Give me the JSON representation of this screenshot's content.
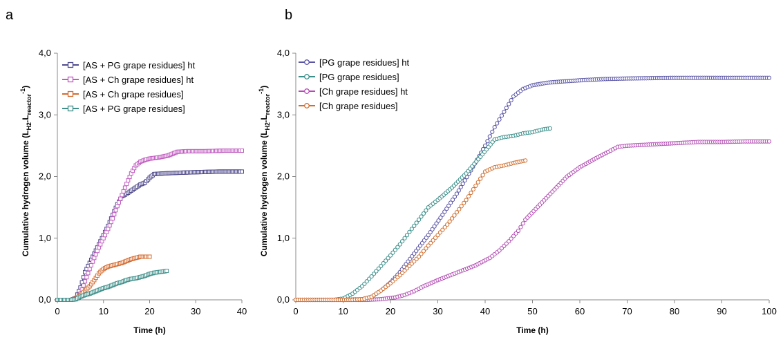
{
  "panels": [
    {
      "id": "a",
      "label": "a"
    },
    {
      "id": "b",
      "label": "b"
    }
  ],
  "chart_data": [
    {
      "type": "line",
      "panel": "a",
      "xlabel": "Time (h)",
      "ylabel_main": "Cumulative hydrogen volume (L",
      "ylabel_sub1": "H2",
      "ylabel_mid": ".L",
      "ylabel_sub2": "reactor",
      "ylabel_sup": "-1",
      "ylabel_end": ")",
      "xlim": [
        0,
        40
      ],
      "ylim": [
        0,
        4
      ],
      "xticks": [
        "0",
        "10",
        "20",
        "30",
        "40"
      ],
      "yticks": [
        "0,0",
        "1,0",
        "2,0",
        "3,0",
        "4,0"
      ],
      "xtick_values": [
        0,
        10,
        20,
        30,
        40
      ],
      "ytick_values": [
        0,
        1,
        2,
        3,
        4
      ],
      "marker": "square",
      "legend_position": "top-left",
      "series": [
        {
          "name": "[AS + PG grape residues] ht",
          "color": "#4f4a8c",
          "points": [
            [
              0,
              0
            ],
            [
              3,
              0
            ],
            [
              4,
              0.03
            ],
            [
              5,
              0.2
            ],
            [
              6,
              0.45
            ],
            [
              7,
              0.6
            ],
            [
              8,
              0.75
            ],
            [
              9,
              0.9
            ],
            [
              10,
              1.05
            ],
            [
              11,
              1.2
            ],
            [
              12,
              1.38
            ],
            [
              13,
              1.55
            ],
            [
              14,
              1.68
            ],
            [
              15,
              1.72
            ],
            [
              16,
              1.77
            ],
            [
              17,
              1.82
            ],
            [
              18,
              1.87
            ],
            [
              19,
              1.9
            ],
            [
              20,
              1.98
            ],
            [
              21,
              2.04
            ],
            [
              23,
              2.05
            ],
            [
              26,
              2.06
            ],
            [
              30,
              2.07
            ],
            [
              35,
              2.08
            ],
            [
              40,
              2.08
            ]
          ]
        },
        {
          "name": "[AS + Ch grape residues] ht",
          "color": "#c05cc0",
          "points": [
            [
              0,
              0
            ],
            [
              3,
              0
            ],
            [
              4,
              0.01
            ],
            [
              5,
              0.1
            ],
            [
              6,
              0.3
            ],
            [
              7,
              0.5
            ],
            [
              8,
              0.68
            ],
            [
              9,
              0.85
            ],
            [
              10,
              1.0
            ],
            [
              11,
              1.15
            ],
            [
              12,
              1.32
            ],
            [
              13,
              1.52
            ],
            [
              14,
              1.7
            ],
            [
              15,
              1.88
            ],
            [
              16,
              2.05
            ],
            [
              17,
              2.18
            ],
            [
              18,
              2.24
            ],
            [
              19,
              2.27
            ],
            [
              20,
              2.29
            ],
            [
              22,
              2.31
            ],
            [
              24,
              2.34
            ],
            [
              25,
              2.37
            ],
            [
              26,
              2.4
            ],
            [
              28,
              2.41
            ],
            [
              32,
              2.41
            ],
            [
              36,
              2.42
            ],
            [
              40,
              2.42
            ]
          ]
        },
        {
          "name": "[AS + Ch grape residues]",
          "color": "#d46a2e",
          "points": [
            [
              0,
              0
            ],
            [
              3,
              0
            ],
            [
              4,
              0.02
            ],
            [
              5,
              0.08
            ],
            [
              6,
              0.15
            ],
            [
              7,
              0.22
            ],
            [
              8,
              0.32
            ],
            [
              9,
              0.43
            ],
            [
              10,
              0.5
            ],
            [
              11,
              0.54
            ],
            [
              12,
              0.56
            ],
            [
              13,
              0.58
            ],
            [
              14,
              0.6
            ],
            [
              15,
              0.63
            ],
            [
              16,
              0.66
            ],
            [
              17,
              0.68
            ],
            [
              18,
              0.7
            ],
            [
              19,
              0.7
            ],
            [
              20,
              0.7
            ]
          ]
        },
        {
          "name": "[AS + PG grape residues]",
          "color": "#3f8f8a",
          "points": [
            [
              0,
              0
            ],
            [
              3,
              0
            ],
            [
              4,
              0.01
            ],
            [
              5,
              0.05
            ],
            [
              6,
              0.08
            ],
            [
              7,
              0.1
            ],
            [
              8,
              0.13
            ],
            [
              9,
              0.16
            ],
            [
              10,
              0.19
            ],
            [
              11,
              0.21
            ],
            [
              12,
              0.24
            ],
            [
              13,
              0.27
            ],
            [
              14,
              0.29
            ],
            [
              15,
              0.32
            ],
            [
              16,
              0.34
            ],
            [
              17,
              0.35
            ],
            [
              18,
              0.37
            ],
            [
              19,
              0.39
            ],
            [
              20,
              0.42
            ],
            [
              21,
              0.44
            ],
            [
              22,
              0.45
            ],
            [
              23,
              0.46
            ],
            [
              23.7,
              0.47
            ]
          ]
        }
      ]
    },
    {
      "type": "line",
      "panel": "b",
      "xlabel": "Time (h)",
      "ylabel_main": "Cumulative hydrogen volume (L",
      "ylabel_sub1": "H2",
      "ylabel_mid": ".L",
      "ylabel_sub2": "reactor",
      "ylabel_sup": "-1",
      "ylabel_end": ")",
      "xlim": [
        0,
        100
      ],
      "ylim": [
        0,
        4
      ],
      "xticks": [
        "0",
        "10",
        "20",
        "30",
        "40",
        "50",
        "60",
        "70",
        "80",
        "90",
        "100"
      ],
      "yticks": [
        "0,0",
        "1,0",
        "2,0",
        "3,0",
        "4,0"
      ],
      "xtick_values": [
        0,
        10,
        20,
        30,
        40,
        50,
        60,
        70,
        80,
        90,
        100
      ],
      "ytick_values": [
        0,
        1,
        2,
        3,
        4
      ],
      "marker": "circle",
      "legend_position": "top-left",
      "series": [
        {
          "name": "[PG grape residues] ht",
          "color": "#5a55a6",
          "points": [
            [
              0,
              0
            ],
            [
              10,
              0
            ],
            [
              14,
              0.01
            ],
            [
              16,
              0.05
            ],
            [
              18,
              0.15
            ],
            [
              20,
              0.28
            ],
            [
              22,
              0.45
            ],
            [
              25,
              0.75
            ],
            [
              28,
              1.05
            ],
            [
              31,
              1.38
            ],
            [
              34,
              1.72
            ],
            [
              37,
              2.1
            ],
            [
              40,
              2.5
            ],
            [
              42,
              2.8
            ],
            [
              44,
              3.05
            ],
            [
              46,
              3.3
            ],
            [
              48,
              3.42
            ],
            [
              50,
              3.48
            ],
            [
              53,
              3.52
            ],
            [
              56,
              3.54
            ],
            [
              60,
              3.56
            ],
            [
              65,
              3.58
            ],
            [
              70,
              3.59
            ],
            [
              80,
              3.6
            ],
            [
              90,
              3.6
            ],
            [
              100,
              3.6
            ]
          ]
        },
        {
          "name": "[PG grape residues]",
          "color": "#3a8f8a",
          "points": [
            [
              0,
              0
            ],
            [
              8,
              0
            ],
            [
              10,
              0.02
            ],
            [
              12,
              0.1
            ],
            [
              14,
              0.22
            ],
            [
              16,
              0.38
            ],
            [
              18,
              0.55
            ],
            [
              20,
              0.72
            ],
            [
              22,
              0.9
            ],
            [
              24,
              1.1
            ],
            [
              26,
              1.3
            ],
            [
              28,
              1.5
            ],
            [
              30,
              1.62
            ],
            [
              33,
              1.82
            ],
            [
              36,
              2.05
            ],
            [
              39,
              2.32
            ],
            [
              42,
              2.6
            ],
            [
              44,
              2.64
            ],
            [
              46,
              2.66
            ],
            [
              48,
              2.7
            ],
            [
              50,
              2.72
            ],
            [
              52,
              2.76
            ],
            [
              53.7,
              2.78
            ]
          ]
        },
        {
          "name": "[Ch grape residues] ht",
          "color": "#b34db3",
          "points": [
            [
              0,
              0
            ],
            [
              15,
              0
            ],
            [
              18,
              0.01
            ],
            [
              21,
              0.04
            ],
            [
              23,
              0.08
            ],
            [
              25,
              0.14
            ],
            [
              27,
              0.22
            ],
            [
              30,
              0.32
            ],
            [
              34,
              0.44
            ],
            [
              38,
              0.56
            ],
            [
              41,
              0.68
            ],
            [
              43,
              0.8
            ],
            [
              45,
              0.95
            ],
            [
              47,
              1.12
            ],
            [
              48.5,
              1.3
            ],
            [
              57.3,
              2.0
            ],
            [
              60,
              2.15
            ],
            [
              63,
              2.28
            ],
            [
              66,
              2.4
            ],
            [
              68,
              2.48
            ],
            [
              70,
              2.5
            ],
            [
              75,
              2.52
            ],
            [
              80,
              2.54
            ],
            [
              85,
              2.56
            ],
            [
              90,
              2.56
            ],
            [
              95,
              2.57
            ],
            [
              100,
              2.57
            ]
          ]
        },
        {
          "name": "[Ch grape residues]",
          "color": "#d07030",
          "points": [
            [
              0,
              0
            ],
            [
              12,
              0
            ],
            [
              14,
              0.01
            ],
            [
              16,
              0.05
            ],
            [
              18,
              0.15
            ],
            [
              20,
              0.27
            ],
            [
              22,
              0.4
            ],
            [
              24,
              0.55
            ],
            [
              26,
              0.7
            ],
            [
              28,
              0.88
            ],
            [
              30,
              1.05
            ],
            [
              32,
              1.22
            ],
            [
              34,
              1.42
            ],
            [
              36,
              1.62
            ],
            [
              38,
              1.85
            ],
            [
              40,
              2.08
            ],
            [
              42,
              2.15
            ],
            [
              44,
              2.18
            ],
            [
              46,
              2.22
            ],
            [
              48.5,
              2.26
            ]
          ]
        }
      ]
    }
  ]
}
